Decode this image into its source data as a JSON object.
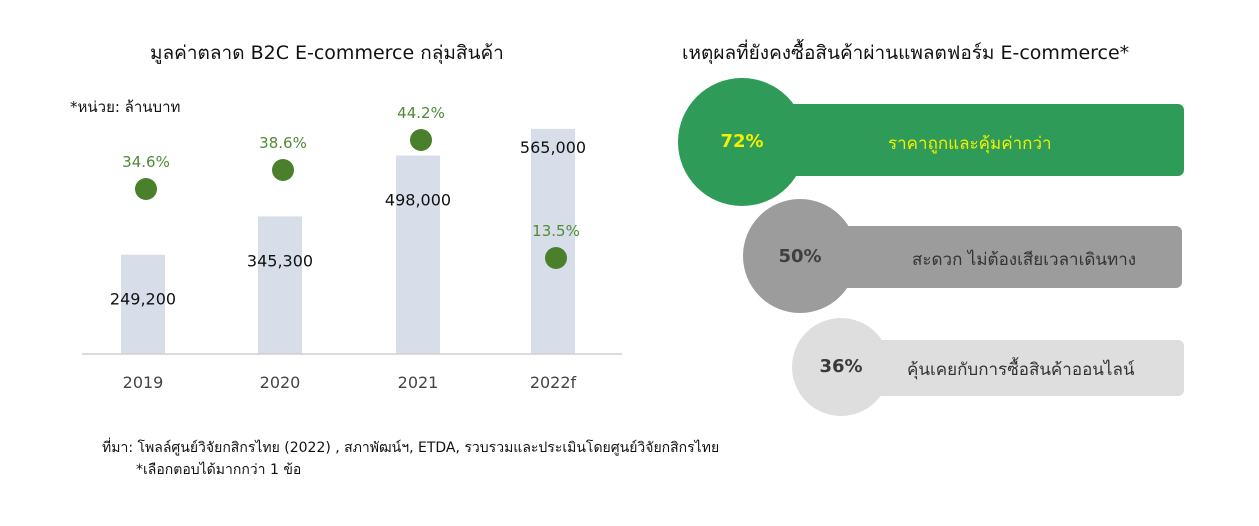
{
  "left_chart": {
    "title": "มูลค่าตลาด B2C E-commerce กลุ่มสินค้า",
    "unit_note": "*หน่วย: ล้านบาท"
  },
  "chart_data": [
    {
      "type": "bar",
      "title": "มูลค่าตลาด B2C E-commerce กลุ่มสินค้า",
      "categories": [
        "2019",
        "2020",
        "2021",
        "2022f"
      ],
      "series": [
        {
          "values": [
            249200,
            345300,
            498000,
            565000
          ]
        }
      ],
      "value_labels": [
        "249,200",
        "345,300",
        "498,000",
        "565,000"
      ],
      "overlay_markers": {
        "values": [
          34.6,
          38.6,
          44.2,
          13.5
        ],
        "labels": [
          "34.6%",
          "38.6%",
          "44.2%",
          "13.5%"
        ]
      },
      "ylim": [
        0,
        650000
      ],
      "grid": false,
      "bar_color": "#d8dee9",
      "marker_color": "#4a7f2c",
      "marker_label_color": "#4f8a35"
    },
    {
      "type": "bar",
      "title": "เหตุผลที่ยังคงซื้อสินค้าผ่านแพลตฟอร์ม E-commerce*",
      "categories": [
        "ราคาถูกและคุ้มค่ากว่า",
        "สะดวก ไม่ต้องเสียเวลาเดินทาง",
        "คุ้นเคยกับการซื้อสินค้าออนไลน์"
      ],
      "values": [
        72,
        50,
        36
      ]
    }
  ],
  "right_chart": {
    "title": "เหตุผลที่ยังคงซื้อสินค้าผ่านแพลตฟอร์ม E-commerce*",
    "items": [
      {
        "percent": "72%",
        "reason": "ราคาถูกและคุ้มค่ากว่า",
        "color": "#2e9b59",
        "text_color": "#f4f000"
      },
      {
        "percent": "50%",
        "reason": "สะดวก ไม่ต้องเสียเวลาเดินทาง",
        "color": "#9c9c9c",
        "text_color": "#3f3f3f"
      },
      {
        "percent": "36%",
        "reason": "คุ้นเคยกับการซื้อสินค้าออนไลน์",
        "color": "#dedede",
        "text_color": "#3a3a3a"
      }
    ]
  },
  "footer": {
    "source": "ที่มา: โพลล์ศูนย์วิจัยกสิกรไทย (2022) , สภาพัฒน์ฯ, ETDA, รวบรวมและประเมินโดยศูนย์วิจัยกสิกรไทย",
    "footnote": "*เลือกตอบได้มากกว่า 1 ข้อ"
  }
}
